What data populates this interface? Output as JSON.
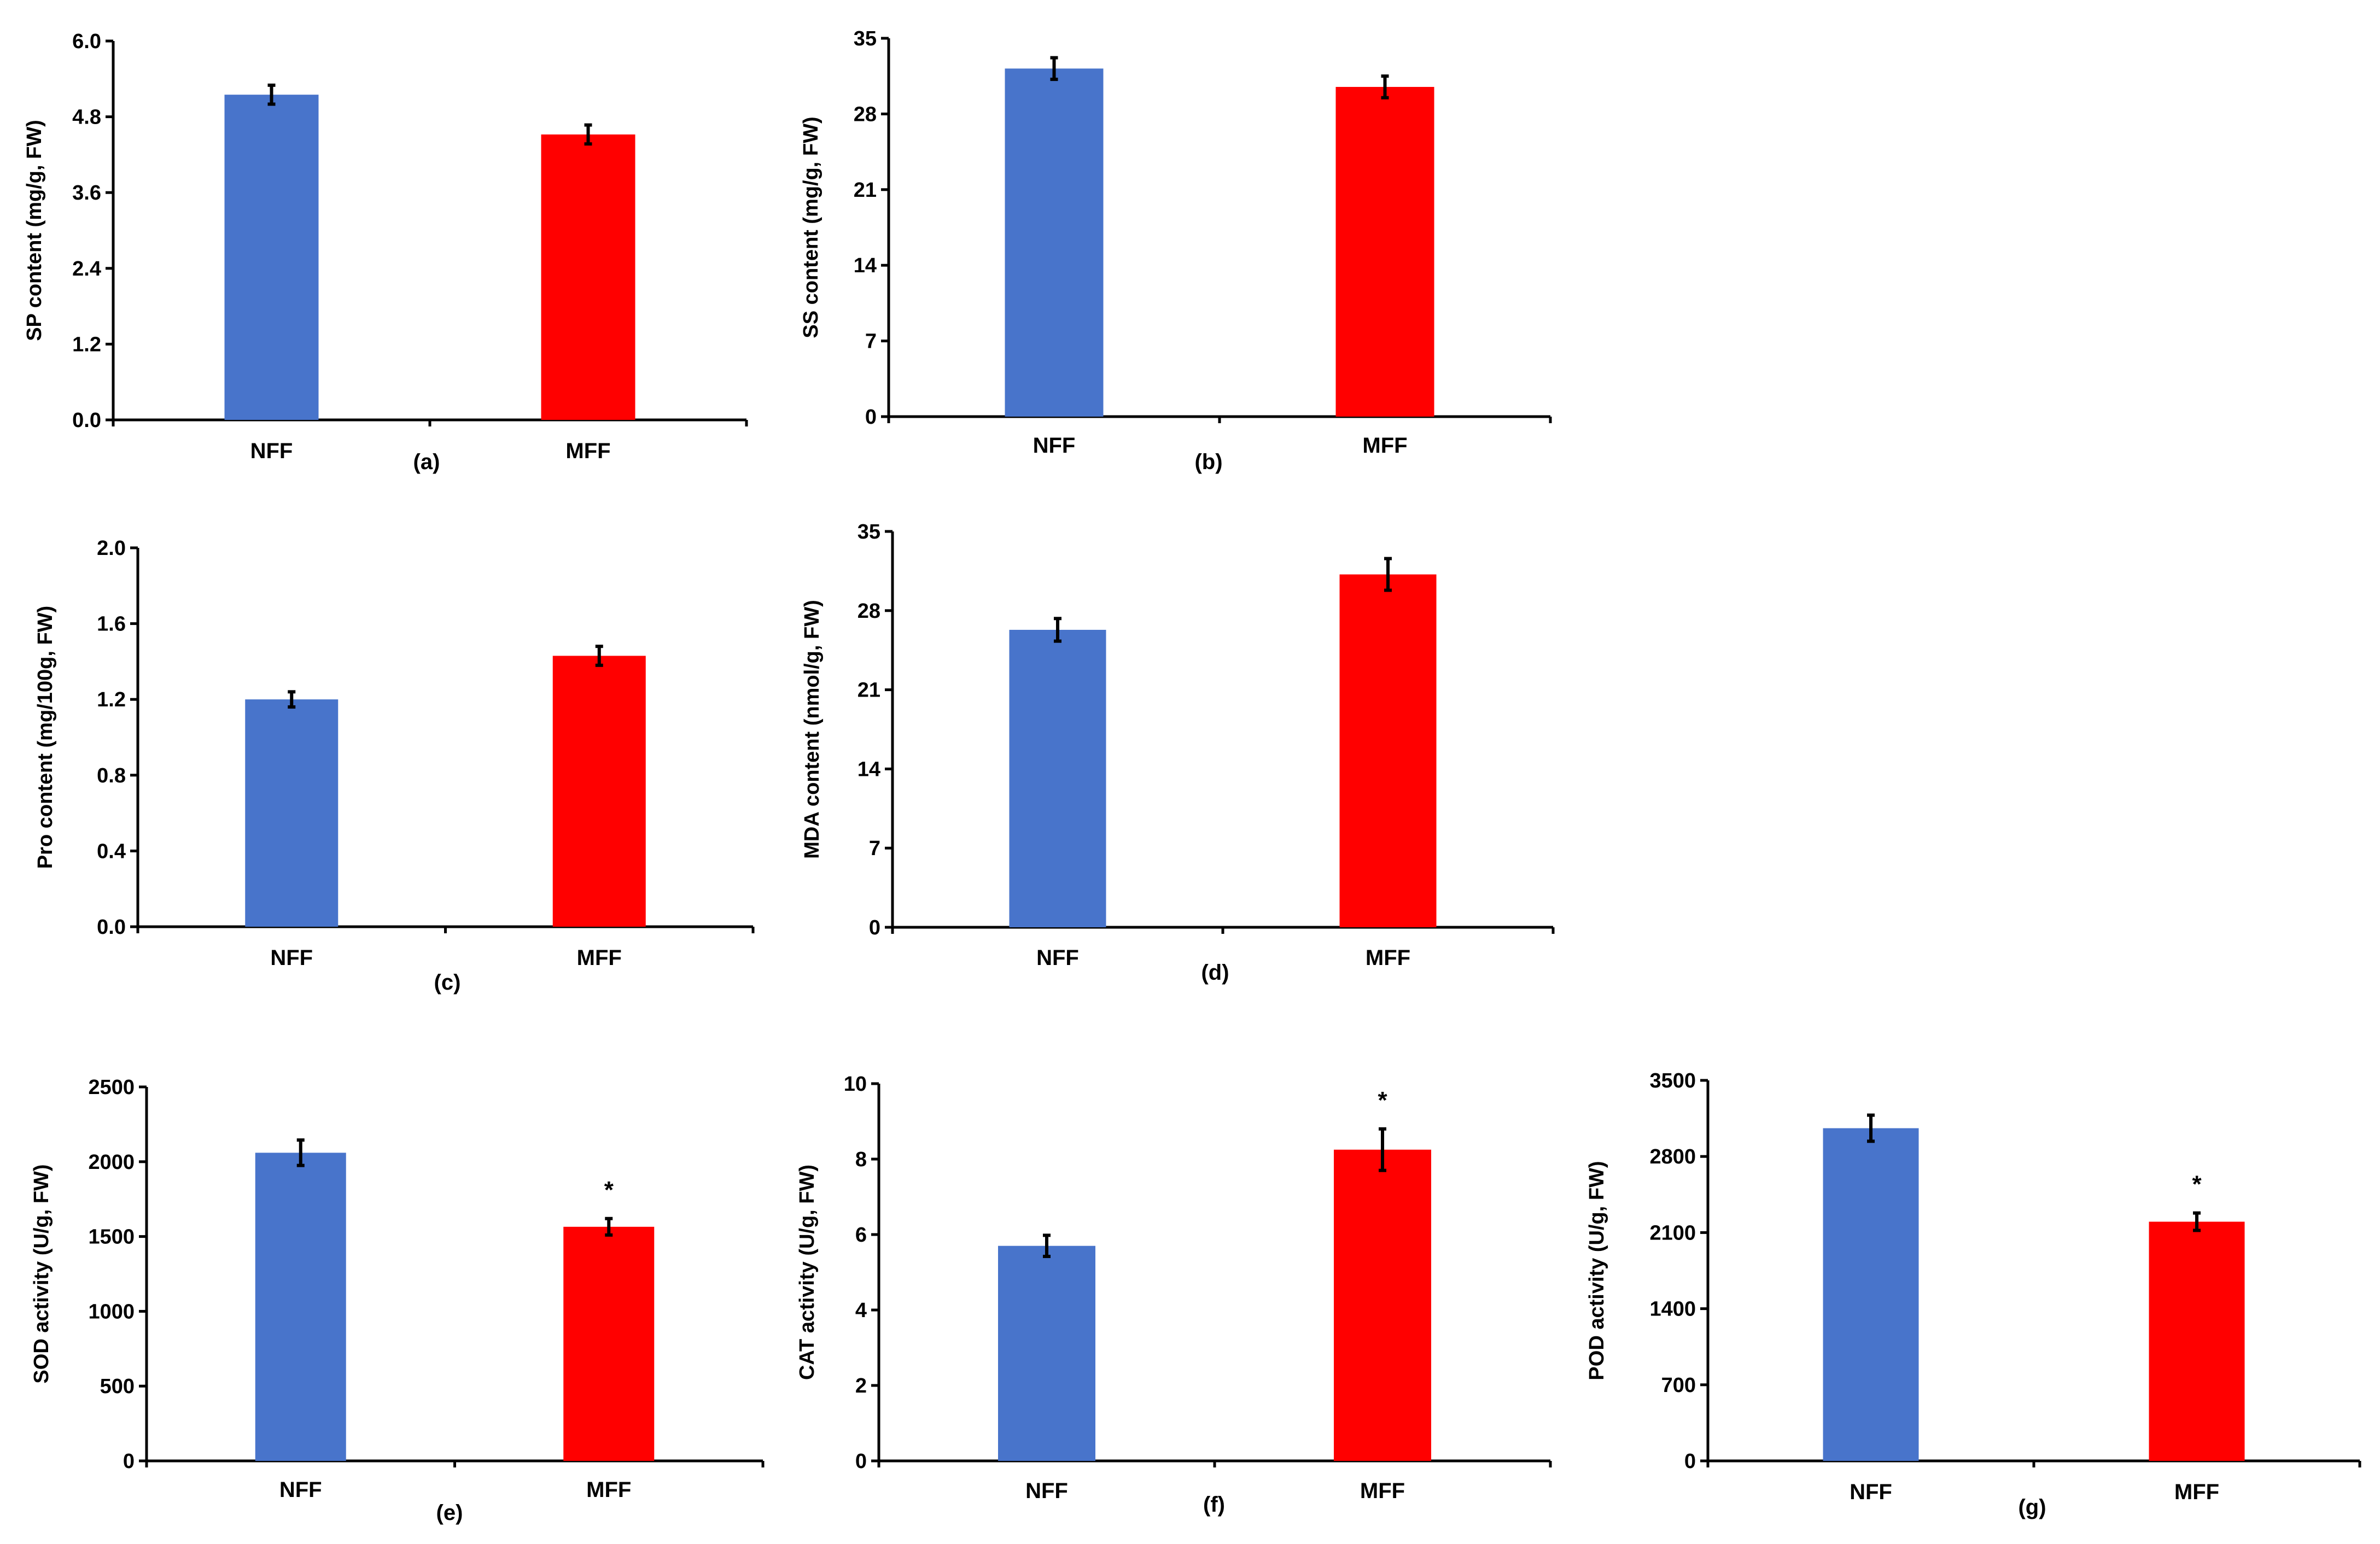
{
  "colors": {
    "nff": "#4874CB",
    "mff": "#FF0000",
    "axis": "#000000"
  },
  "chart_data": [
    {
      "id": "a",
      "type": "bar",
      "subplot_label": "(a)",
      "ylabel": "SP content (mg/g, FW)",
      "categories": [
        "NFF",
        "MFF"
      ],
      "values": [
        5.15,
        4.52
      ],
      "errors": [
        0.15,
        0.15
      ],
      "significance": [
        "",
        ""
      ],
      "ylim": [
        0,
        6.0
      ],
      "yticks": [
        "0.0",
        "1.2",
        "2.4",
        "3.6",
        "4.8",
        "6.0"
      ]
    },
    {
      "id": "b",
      "type": "bar",
      "subplot_label": "(b)",
      "ylabel": "SS content (mg/g, FW)",
      "categories": [
        "NFF",
        "MFF"
      ],
      "values": [
        32.2,
        30.5
      ],
      "errors": [
        1.0,
        1.0
      ],
      "significance": [
        "",
        ""
      ],
      "ylim": [
        0,
        35
      ],
      "yticks": [
        "0",
        "7",
        "14",
        "21",
        "28",
        "35"
      ]
    },
    {
      "id": "c",
      "type": "bar",
      "subplot_label": "(c)",
      "ylabel": "Pro content (mg/100g, FW)",
      "categories": [
        "NFF",
        "MFF"
      ],
      "values": [
        1.2,
        1.43
      ],
      "errors": [
        0.04,
        0.05
      ],
      "significance": [
        "",
        ""
      ],
      "ylim": [
        0,
        2.0
      ],
      "yticks": [
        "0.0",
        "0.4",
        "0.8",
        "1.2",
        "1.6",
        "2.0"
      ]
    },
    {
      "id": "d",
      "type": "bar",
      "subplot_label": "(d)",
      "ylabel": "MDA content (nmol/g, FW)",
      "categories": [
        "NFF",
        "MFF"
      ],
      "values": [
        26.3,
        31.2
      ],
      "errors": [
        1.0,
        1.4
      ],
      "significance": [
        "",
        ""
      ],
      "ylim": [
        0,
        35
      ],
      "yticks": [
        "0",
        "7",
        "14",
        "21",
        "28",
        "35"
      ]
    },
    {
      "id": "e",
      "type": "bar",
      "subplot_label": "(e)",
      "ylabel": "SOD activity (U/g, FW)",
      "categories": [
        "NFF",
        "MFF"
      ],
      "values": [
        2060,
        1565
      ],
      "errors": [
        85,
        55
      ],
      "significance": [
        "",
        "*"
      ],
      "ylim": [
        0,
        2500
      ],
      "yticks": [
        "0",
        "500",
        "1000",
        "1500",
        "2000",
        "2500"
      ]
    },
    {
      "id": "f",
      "type": "bar",
      "subplot_label": "(f)",
      "ylabel": "CAT activity (U/g, FW)",
      "categories": [
        "NFF",
        "MFF"
      ],
      "values": [
        5.7,
        8.25
      ],
      "errors": [
        0.28,
        0.55
      ],
      "significance": [
        "",
        "*"
      ],
      "ylim": [
        0,
        10
      ],
      "yticks": [
        "0",
        "2",
        "4",
        "6",
        "8",
        "10"
      ]
    },
    {
      "id": "g",
      "type": "bar",
      "subplot_label": "(g)",
      "ylabel": "POD  activity (U/g, FW)",
      "categories": [
        "NFF",
        "MFF"
      ],
      "values": [
        3060,
        2200
      ],
      "errors": [
        120,
        80
      ],
      "significance": [
        "",
        "*"
      ],
      "ylim": [
        0,
        3500
      ],
      "yticks": [
        "0",
        "700",
        "1400",
        "2100",
        "2800",
        "3500"
      ]
    }
  ]
}
